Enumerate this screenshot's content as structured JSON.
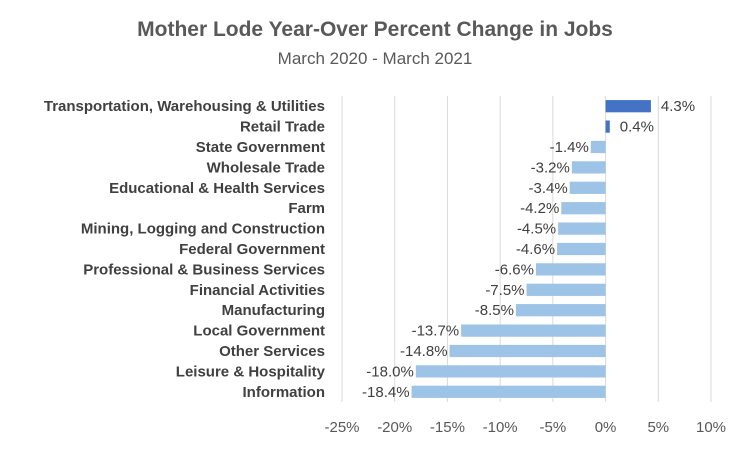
{
  "chart_data": {
    "type": "bar",
    "orientation": "horizontal",
    "title": "Mother Lode Year-Over Percent Change in Jobs",
    "subtitle": "March 2020 - March 2021",
    "categories": [
      "Transportation, Warehousing & Utilities",
      "Retail Trade",
      "State Government",
      "Wholesale Trade",
      "Educational & Health Services",
      "Farm",
      "Mining, Logging and Construction",
      "Federal Government",
      "Professional & Business Services",
      "Financial Activities",
      "Manufacturing",
      "Local Government",
      "Other Services",
      "Leisure & Hospitality",
      "Information"
    ],
    "values": [
      4.3,
      0.4,
      -1.4,
      -3.2,
      -3.4,
      -4.2,
      -4.5,
      -4.6,
      -6.6,
      -7.5,
      -8.5,
      -13.7,
      -14.8,
      -18.0,
      -18.4
    ],
    "data_labels": [
      "4.3%",
      "0.4%",
      "-1.4%",
      "-3.2%",
      "-3.4%",
      "-4.2%",
      "-4.5%",
      "-4.6%",
      "-6.6%",
      "-7.5%",
      "-8.5%",
      "-13.7%",
      "-14.8%",
      "-18.0%",
      "-18.4%"
    ],
    "xlim": [
      -25,
      10
    ],
    "xticks": [
      -25,
      -20,
      -15,
      -10,
      -5,
      0,
      5,
      10
    ],
    "xtick_labels": [
      "-25%",
      "-20%",
      "-15%",
      "-10%",
      "-5%",
      "0%",
      "5%",
      "10%"
    ],
    "xlabel": "",
    "ylabel": "",
    "grid": true,
    "legend": false,
    "colors": {
      "positive": "#4472C4",
      "negative": "#9DC3E6",
      "grid": "#D9D9D9",
      "text": "#404040"
    }
  }
}
